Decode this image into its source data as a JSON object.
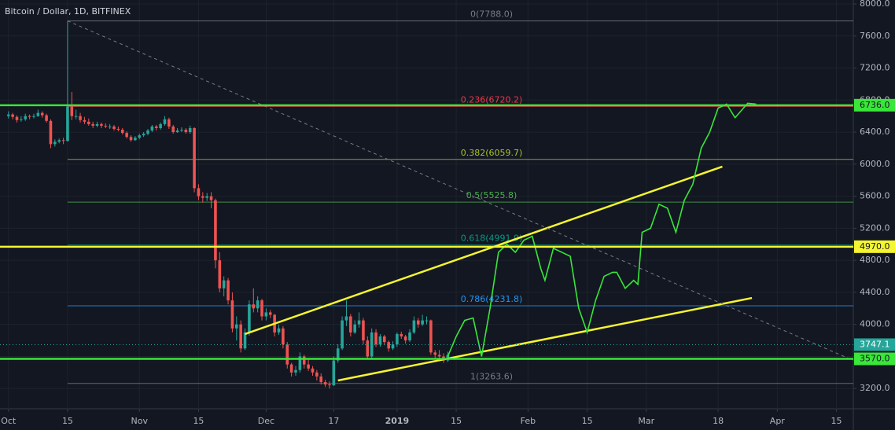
{
  "chart_data": {
    "type": "candlestick",
    "title": "Bitcoin / Dollar, 1D, BITFINEX",
    "up_color": "#26a69a",
    "down_color": "#ef5350",
    "xlim": [
      -2,
      200
    ],
    "ylim": [
      2947,
      8049
    ],
    "xticks": [
      {
        "value": 0,
        "label": "Oct"
      },
      {
        "value": 14,
        "label": "15"
      },
      {
        "value": 31,
        "label": "Nov"
      },
      {
        "value": 45,
        "label": "15"
      },
      {
        "value": 61,
        "label": "Dec"
      },
      {
        "value": 77,
        "label": "17"
      },
      {
        "value": 92,
        "label": "2019"
      },
      {
        "value": 106,
        "label": "15"
      },
      {
        "value": 123,
        "label": "Feb"
      },
      {
        "value": 137,
        "label": "15"
      },
      {
        "value": 151,
        "label": "Mar"
      },
      {
        "value": 168,
        "label": "18"
      },
      {
        "value": 182,
        "label": "Apr"
      },
      {
        "value": 196,
        "label": "15"
      }
    ],
    "yticks": [
      {
        "value": 3200,
        "label": "3200.0"
      },
      {
        "value": 3600,
        "label": "3600.0"
      },
      {
        "value": 4000,
        "label": "4000.0"
      },
      {
        "value": 4400,
        "label": "4400.0"
      },
      {
        "value": 4800,
        "label": "4800.0"
      },
      {
        "value": 5200,
        "label": "5200.0"
      },
      {
        "value": 5600,
        "label": "5600.0"
      },
      {
        "value": 6000,
        "label": "6000.0"
      },
      {
        "value": 6400,
        "label": "6400.0"
      },
      {
        "value": 6800,
        "label": "6800.0"
      },
      {
        "value": 7200,
        "label": "7200.0"
      },
      {
        "value": 7600,
        "label": "7600.0"
      },
      {
        "value": 8000,
        "label": "8000.0"
      }
    ],
    "grid": true,
    "ohlc": [
      [
        6600,
        6660,
        6570,
        6620
      ],
      [
        6620,
        6640,
        6560,
        6590
      ],
      [
        6590,
        6610,
        6520,
        6550
      ],
      [
        6550,
        6600,
        6530,
        6560
      ],
      [
        6560,
        6630,
        6540,
        6600
      ],
      [
        6600,
        6620,
        6560,
        6590
      ],
      [
        6590,
        6630,
        6570,
        6600
      ],
      [
        6600,
        6680,
        6590,
        6640
      ],
      [
        6640,
        6660,
        6580,
        6610
      ],
      [
        6610,
        6630,
        6520,
        6540
      ],
      [
        6540,
        6560,
        6200,
        6250
      ],
      [
        6250,
        6310,
        6220,
        6280
      ],
      [
        6280,
        6320,
        6260,
        6300
      ],
      [
        6300,
        6330,
        6250,
        6290
      ],
      [
        6290,
        7788,
        6280,
        6720
      ],
      [
        6720,
        6900,
        6550,
        6600
      ],
      [
        6600,
        6680,
        6560,
        6600
      ],
      [
        6600,
        6640,
        6520,
        6550
      ],
      [
        6550,
        6590,
        6500,
        6530
      ],
      [
        6530,
        6570,
        6480,
        6500
      ],
      [
        6500,
        6530,
        6450,
        6480
      ],
      [
        6480,
        6530,
        6460,
        6500
      ],
      [
        6500,
        6520,
        6450,
        6480
      ],
      [
        6480,
        6510,
        6450,
        6470
      ],
      [
        6470,
        6500,
        6440,
        6470
      ],
      [
        6470,
        6490,
        6420,
        6440
      ],
      [
        6440,
        6470,
        6410,
        6430
      ],
      [
        6430,
        6450,
        6370,
        6390
      ],
      [
        6390,
        6410,
        6320,
        6340
      ],
      [
        6340,
        6360,
        6280,
        6300
      ],
      [
        6300,
        6350,
        6290,
        6330
      ],
      [
        6330,
        6380,
        6310,
        6360
      ],
      [
        6360,
        6400,
        6340,
        6380
      ],
      [
        6380,
        6440,
        6360,
        6420
      ],
      [
        6420,
        6490,
        6400,
        6470
      ],
      [
        6470,
        6490,
        6420,
        6450
      ],
      [
        6450,
        6520,
        6430,
        6500
      ],
      [
        6500,
        6600,
        6480,
        6560
      ],
      [
        6560,
        6580,
        6440,
        6470
      ],
      [
        6470,
        6490,
        6380,
        6400
      ],
      [
        6400,
        6450,
        6390,
        6420
      ],
      [
        6420,
        6460,
        6400,
        6430
      ],
      [
        6430,
        6450,
        6380,
        6400
      ],
      [
        6400,
        6480,
        6380,
        6450
      ],
      [
        6450,
        6460,
        5650,
        5700
      ],
      [
        5700,
        5750,
        5550,
        5600
      ],
      [
        5600,
        5650,
        5520,
        5580
      ],
      [
        5580,
        5640,
        5540,
        5600
      ],
      [
        5600,
        5650,
        5450,
        5550
      ],
      [
        5550,
        5570,
        4700,
        4800
      ],
      [
        4800,
        4900,
        4400,
        4450
      ],
      [
        4450,
        4600,
        4350,
        4550
      ],
      [
        4550,
        4580,
        4250,
        4300
      ],
      [
        4300,
        4400,
        3900,
        3950
      ],
      [
        3950,
        4100,
        3800,
        4000
      ],
      [
        4000,
        4050,
        3650,
        3700
      ],
      [
        3700,
        3950,
        3680,
        3900
      ],
      [
        3900,
        4300,
        3860,
        4250
      ],
      [
        4250,
        4450,
        4150,
        4200
      ],
      [
        4200,
        4350,
        4150,
        4300
      ],
      [
        4300,
        4320,
        4050,
        4100
      ],
      [
        4100,
        4200,
        4050,
        4150
      ],
      [
        4150,
        4180,
        4080,
        4120
      ],
      [
        4120,
        4130,
        3850,
        3900
      ],
      [
        3900,
        4000,
        3870,
        3950
      ],
      [
        3950,
        3980,
        3700,
        3750
      ],
      [
        3750,
        3780,
        3450,
        3500
      ],
      [
        3500,
        3520,
        3350,
        3400
      ],
      [
        3400,
        3480,
        3360,
        3430
      ],
      [
        3430,
        3650,
        3400,
        3600
      ],
      [
        3600,
        3620,
        3450,
        3500
      ],
      [
        3500,
        3560,
        3420,
        3450
      ],
      [
        3450,
        3480,
        3360,
        3400
      ],
      [
        3400,
        3430,
        3300,
        3350
      ],
      [
        3350,
        3390,
        3250,
        3280
      ],
      [
        3280,
        3310,
        3220,
        3250
      ],
      [
        3250,
        3290,
        3200,
        3240
      ],
      [
        3240,
        3600,
        3230,
        3550
      ],
      [
        3550,
        3750,
        3520,
        3700
      ],
      [
        3700,
        4100,
        3680,
        4050
      ],
      [
        4050,
        4300,
        3980,
        4100
      ],
      [
        4100,
        4130,
        3850,
        3900
      ],
      [
        3900,
        4050,
        3880,
        4000
      ],
      [
        4000,
        4150,
        3960,
        4050
      ],
      [
        4050,
        4080,
        3750,
        3800
      ],
      [
        3800,
        3850,
        3580,
        3600
      ],
      [
        3600,
        3950,
        3580,
        3900
      ],
      [
        3900,
        3940,
        3720,
        3750
      ],
      [
        3750,
        3880,
        3720,
        3850
      ],
      [
        3850,
        3870,
        3740,
        3780
      ],
      [
        3780,
        3800,
        3660,
        3700
      ],
      [
        3700,
        3790,
        3680,
        3750
      ],
      [
        3750,
        3900,
        3720,
        3880
      ],
      [
        3880,
        3910,
        3820,
        3850
      ],
      [
        3850,
        3870,
        3760,
        3800
      ],
      [
        3800,
        3940,
        3780,
        3900
      ],
      [
        3900,
        4100,
        3880,
        4050
      ],
      [
        4050,
        4080,
        3960,
        4000
      ],
      [
        4000,
        4120,
        3980,
        4050
      ],
      [
        4050,
        4100,
        4000,
        4050
      ],
      [
        4050,
        4060,
        3620,
        3650
      ],
      [
        3650,
        3680,
        3560,
        3620
      ],
      [
        3620,
        3680,
        3580,
        3600
      ],
      [
        3600,
        3640,
        3520,
        3550
      ],
      [
        3550,
        3660,
        3530,
        3620
      ]
    ],
    "fib": {
      "start": 14,
      "levels": [
        {
          "value": 7788.0,
          "label": "0(7788.0)",
          "color": "#787b86"
        },
        {
          "value": 6720.2,
          "label": "0.236(6720.2)",
          "color": "#f23645"
        },
        {
          "value": 6059.7,
          "label": "0.382(6059.7)",
          "color": "#a8c22a"
        },
        {
          "value": 5525.8,
          "label": "0.5(5525.8)",
          "color": "#4caf50"
        },
        {
          "value": 4991.9,
          "label": "0.618(4991.9)",
          "color": "#089981"
        },
        {
          "value": 4231.8,
          "label": "0.786(4231.8)",
          "color": "#2196f3"
        },
        {
          "value": 3263.6,
          "label": "1(3263.6)",
          "color": "#787b86"
        }
      ]
    },
    "levels": [
      {
        "value": 6736.0,
        "label": "6736.0",
        "color": "#39e639"
      },
      {
        "value": 4970.0,
        "label": "4970.0",
        "color": "#f5f530"
      },
      {
        "value": 3570.0,
        "label": "3570.0",
        "color": "#39e639"
      },
      {
        "value": 3747.1,
        "label": "3747.1",
        "color": "#26a69a",
        "dotted": true
      }
    ],
    "trendlines": [
      {
        "x": [
          56,
          169
        ],
        "values": [
          3880,
          5970
        ],
        "color": "#f5f530"
      },
      {
        "x": [
          78,
          176
        ],
        "values": [
          3300,
          4330
        ],
        "color": "#f5f530"
      },
      {
        "x": [
          14,
          200
        ],
        "values": [
          7788,
          3550
        ],
        "color": "#787b86",
        "dashed": true
      }
    ],
    "projection": {
      "color": "#39e639",
      "x": [
        104,
        106,
        108,
        110,
        112,
        114,
        116,
        118,
        120,
        122,
        124,
        126,
        127,
        129,
        131,
        133,
        135,
        137,
        139,
        141,
        143,
        144,
        146,
        148,
        149,
        150,
        152,
        154,
        156,
        158,
        160,
        162,
        164,
        166,
        168,
        170,
        172,
        174,
        175,
        177
      ],
      "values": [
        3600,
        3850,
        4050,
        4080,
        3600,
        4200,
        4900,
        5000,
        4900,
        5050,
        5100,
        4700,
        4550,
        4950,
        4900,
        4850,
        4200,
        3900,
        4300,
        4600,
        4650,
        4650,
        4450,
        4550,
        4500,
        5150,
        5200,
        5500,
        5450,
        5150,
        5550,
        5750,
        6200,
        6400,
        6700,
        6750,
        6580,
        6700,
        6760,
        6750
      ]
    }
  }
}
